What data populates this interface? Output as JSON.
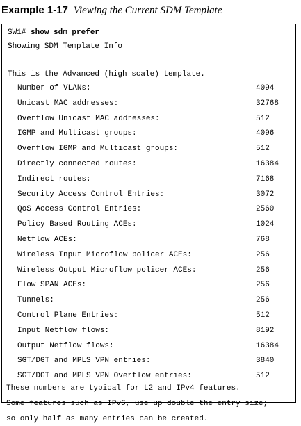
{
  "caption": {
    "label": "Example 1-17",
    "title": "Viewing the Current SDM Template"
  },
  "terminal": {
    "prompt": "SW1#",
    "command": "show sdm prefer",
    "header": "Showing SDM Template Info",
    "template_line": "This is the Advanced (high scale) template.",
    "rows": [
      {
        "label": "Number of VLANs:",
        "value": "4094"
      },
      {
        "label": "Unicast MAC addresses:",
        "value": "32768"
      },
      {
        "label": "Overflow Unicast MAC addresses:",
        "value": "512"
      },
      {
        "label": "IGMP and Multicast groups:",
        "value": "4096"
      },
      {
        "label": "Overflow IGMP and Multicast groups:",
        "value": "512"
      },
      {
        "label": "Directly connected routes:",
        "value": "16384"
      },
      {
        "label": "Indirect routes:",
        "value": "7168"
      },
      {
        "label": "Security Access Control Entries:",
        "value": "3072"
      },
      {
        "label": "QoS Access Control Entries:",
        "value": "2560"
      },
      {
        "label": "Policy Based Routing ACEs:",
        "value": "1024"
      },
      {
        "label": "Netflow ACEs:",
        "value": "768"
      },
      {
        "label": "Wireless Input Microflow policer ACEs:",
        "value": "256"
      },
      {
        "label": "Wireless Output Microflow policer ACEs:",
        "value": "256"
      },
      {
        "label": "Flow SPAN ACEs:",
        "value": "256"
      },
      {
        "label": "Tunnels:",
        "value": "256"
      },
      {
        "label": "Control Plane Entries:",
        "value": "512"
      },
      {
        "label": "Input Netflow flows:",
        "value": "8192"
      },
      {
        "label": "Output Netflow flows:",
        "value": "16384"
      },
      {
        "label": "SGT/DGT and MPLS VPN entries:",
        "value": "3840"
      },
      {
        "label": "SGT/DGT and MPLS VPN Overflow entries:",
        "value": "512"
      }
    ],
    "footer": [
      "These numbers are typical for L2 and IPv4 features.",
      "Some features such as IPv6, use up double the entry size;",
      "so only half as many entries can be created."
    ]
  }
}
